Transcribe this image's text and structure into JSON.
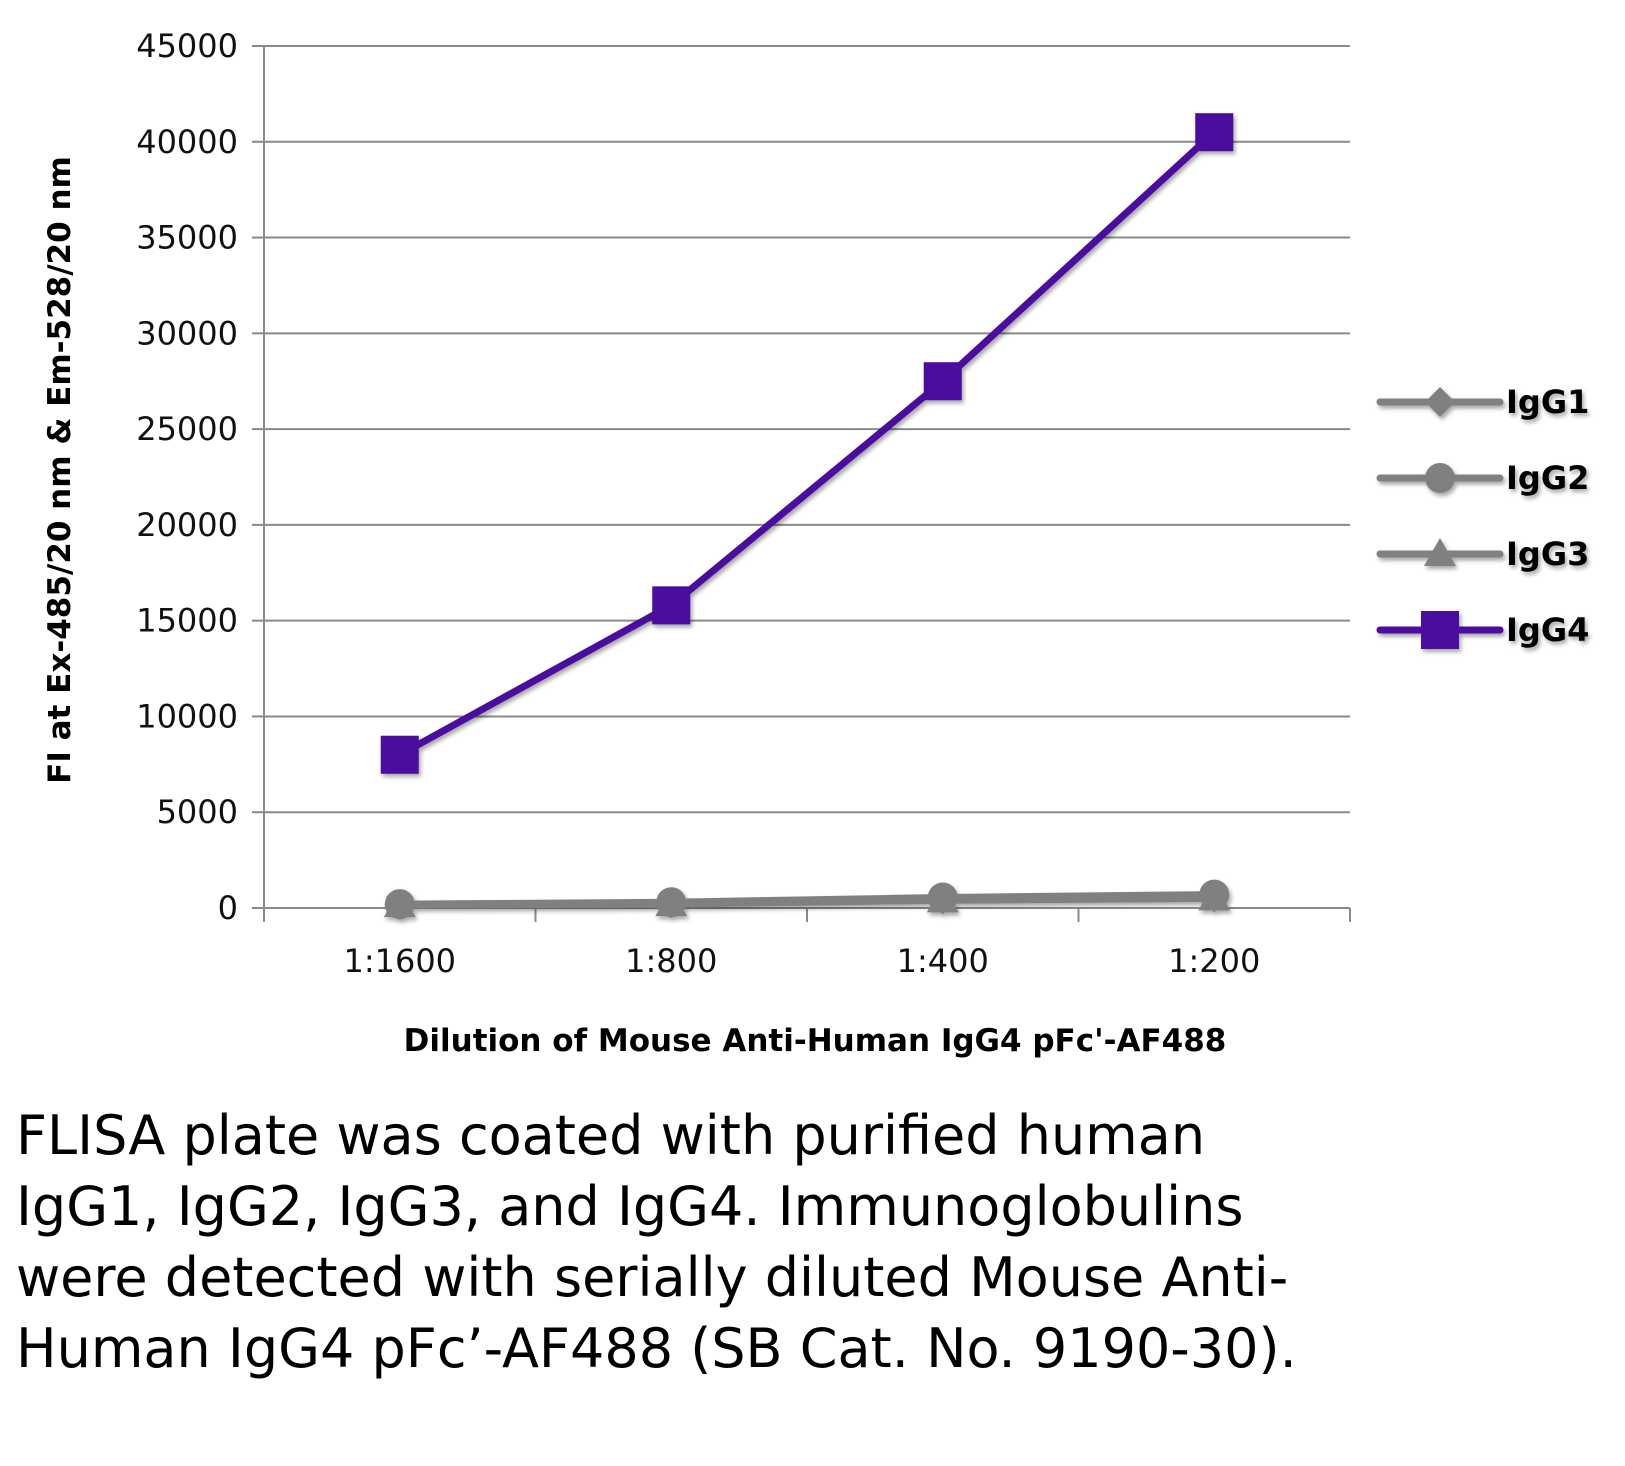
{
  "chart_data": {
    "type": "line",
    "categories": [
      "1:1600",
      "1:800",
      "1:400",
      "1:200"
    ],
    "xlabel": "Dilution of Mouse Anti-Human IgG4 pFc'-AF488",
    "ylabel": "FI at Ex-485/20 nm & Em-528/20 nm",
    "ylim": [
      0,
      45000
    ],
    "yticks": [
      0,
      5000,
      10000,
      15000,
      20000,
      25000,
      30000,
      35000,
      40000,
      45000
    ],
    "grid": true,
    "legend_position": "right",
    "series": [
      {
        "name": "IgG1",
        "values": [
          150,
          250,
          450,
          550
        ],
        "color": "#808080",
        "marker": "diamond"
      },
      {
        "name": "IgG2",
        "values": [
          200,
          300,
          550,
          700
        ],
        "color": "#808080",
        "marker": "circle"
      },
      {
        "name": "IgG3",
        "values": [
          150,
          200,
          400,
          500
        ],
        "color": "#808080",
        "marker": "triangle"
      },
      {
        "name": "IgG4",
        "values": [
          8000,
          15800,
          27500,
          40500
        ],
        "color": "#4B0A9E",
        "marker": "square"
      }
    ]
  },
  "caption": "FLISA plate was coated with purified human IgG1, IgG2, IgG3, and IgG4.  Immunoglobulins were detected with serially diluted Mouse Anti-Human IgG4 pFc’-AF488 (SB Cat. No. 9190-30)."
}
